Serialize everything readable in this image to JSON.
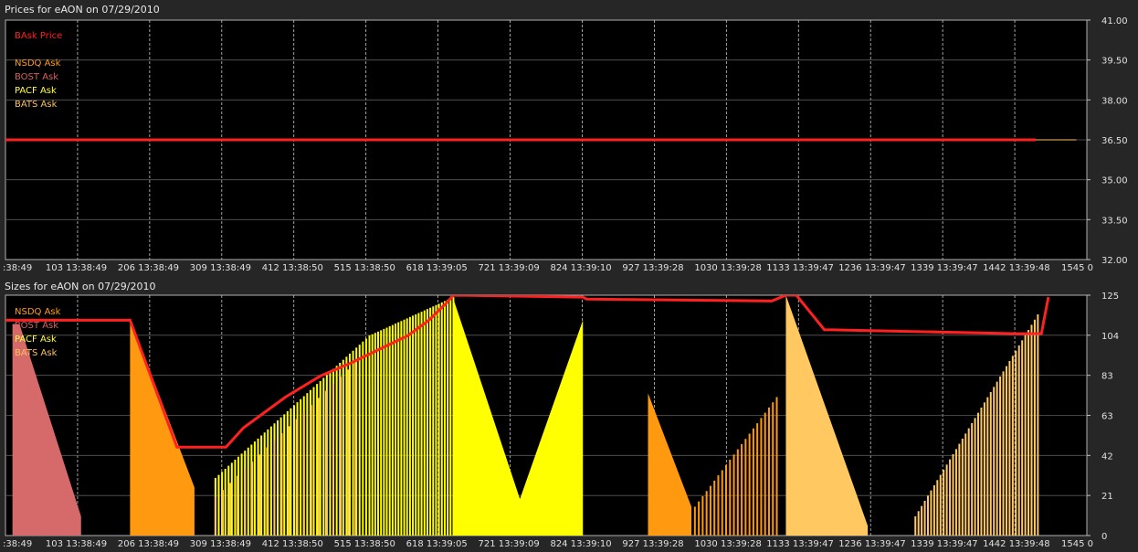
{
  "chart_data": [
    {
      "type": "line",
      "title": "Prices for  eAON  on  07/29/2010",
      "x_tick_labels": [
        ":38:49",
        "103 13:38:49",
        "206 13:38:49",
        "309 13:38:49",
        "412 13:38:50",
        "515 13:38:50",
        "618 13:39:05",
        "721 13:39:09",
        "824 13:39:10",
        "927 13:39:28",
        "1030 13:39:28",
        "1133 13:39:47",
        "1236 13:39:47",
        "1339 13:39:47",
        "1442 13:39:48",
        "1545 0"
      ],
      "y_tick_labels": [
        "41.00",
        "39.50",
        "38.00",
        "36.50",
        "35.00",
        "33.50",
        "32.00"
      ],
      "ylim": [
        32.0,
        41.0
      ],
      "xlim": [
        0,
        1545
      ],
      "grid": true,
      "legend": [
        {
          "name": "BAsk Price",
          "color": "#ff2020"
        },
        {
          "name": "NSDQ Ask",
          "color": "#ff9a20"
        },
        {
          "name": "BOST Ask",
          "color": "#d86060"
        },
        {
          "name": "PACF Ask",
          "color": "#ffff40"
        },
        {
          "name": "BATS Ask",
          "color": "#ffc060"
        }
      ],
      "series": [
        {
          "name": "BAsk Price",
          "color": "#ff2020",
          "x": [
            0,
            1472
          ],
          "y": [
            36.5,
            36.5
          ]
        },
        {
          "name": "BATS Ask",
          "color": "#ffc060",
          "x": [
            1472,
            1530
          ],
          "y": [
            36.5,
            36.5
          ]
        }
      ]
    },
    {
      "type": "area",
      "title": "Sizes for  eAON  on  07/29/2010",
      "x_tick_labels": [
        ":38:49",
        "103 13:38:49",
        "206 13:38:49",
        "309 13:38:49",
        "412 13:38:50",
        "515 13:38:50",
        "618 13:39:05",
        "721 13:39:09",
        "824 13:39:10",
        "927 13:39:28",
        "1030 13:39:28",
        "1133 13:39:47",
        "1236 13:39:47",
        "1339 13:39:47",
        "1442 13:39:48",
        "1545 0"
      ],
      "y_tick_labels": [
        "125",
        "104",
        "83",
        "63",
        "42",
        "21",
        "0"
      ],
      "ylim": [
        0,
        125
      ],
      "xlim": [
        0,
        1545
      ],
      "grid": true,
      "legend": [
        {
          "name": "NSDQ Ask",
          "color": "#ff9a20"
        },
        {
          "name": "BOST Ask",
          "color": "#d86060"
        },
        {
          "name": "PACF Ask",
          "color": "#ffff40"
        },
        {
          "name": "BATS Ask",
          "color": "#ffc060"
        }
      ],
      "areas": [
        {
          "name": "BOST Ask",
          "color": "#d66a6a",
          "x": [
            10,
            20,
            108,
            108,
            10
          ],
          "y": [
            110,
            110,
            10,
            0,
            0
          ]
        },
        {
          "name": "NSDQ Ask",
          "color": "#ff9a10",
          "x": [
            178,
            270,
            270,
            178
          ],
          "y": [
            113,
            25,
            0,
            0
          ]
        },
        {
          "name": "PACF Ask",
          "color": "#ffff00",
          "x": [
            640,
            735,
            825,
            825,
            640
          ],
          "y": [
            123,
            19,
            112,
            0,
            0
          ]
        },
        {
          "name": "NSDQ Ask",
          "color": "#ff9a10",
          "x": [
            918,
            980,
            980,
            918
          ],
          "y": [
            74,
            15,
            0,
            0
          ]
        },
        {
          "name": "BATS Ask",
          "color": "#ffc860",
          "x": [
            1115,
            1232,
            1232,
            1115
          ],
          "y": [
            125,
            5,
            0,
            0
          ]
        }
      ],
      "spikes": [
        {
          "name": "NSDQ Ask",
          "color": "#ff9a10",
          "x0": 985,
          "x1": 1102,
          "y0": 15,
          "y1": 72,
          "count": 22
        },
        {
          "name": "PACF Ask",
          "color": "#ffff00",
          "x0": 300,
          "x1": 520,
          "y0": 30,
          "y1": 104,
          "count": 48
        },
        {
          "name": "BATS Ask",
          "color": "#ffc860",
          "x0": 300,
          "x1": 500,
          "y0": 20,
          "y1": 90,
          "count": 20
        },
        {
          "name": "PACF Ask",
          "color": "#ffff00",
          "x0": 520,
          "x1": 640,
          "y0": 104,
          "y1": 124,
          "count": 30
        },
        {
          "name": "BATS Ask",
          "color": "#ffc860",
          "x0": 1300,
          "x1": 1475,
          "y0": 10,
          "y1": 115,
          "count": 40
        }
      ],
      "series": [
        {
          "name": "BAsk Size",
          "color": "#ff2020",
          "x": [
            0,
            178,
            245,
            315,
            340,
            400,
            450,
            495,
            535,
            575,
            605,
            630,
            640,
            825,
            830,
            1095,
            1115,
            1130,
            1170,
            1180,
            1445,
            1480,
            1490
          ],
          "y": [
            112,
            112,
            46,
            46,
            56,
            72,
            83,
            90,
            97,
            104,
            112,
            121,
            125,
            124,
            123,
            122,
            125,
            125,
            107,
            107,
            105,
            105,
            124
          ]
        }
      ]
    }
  ]
}
